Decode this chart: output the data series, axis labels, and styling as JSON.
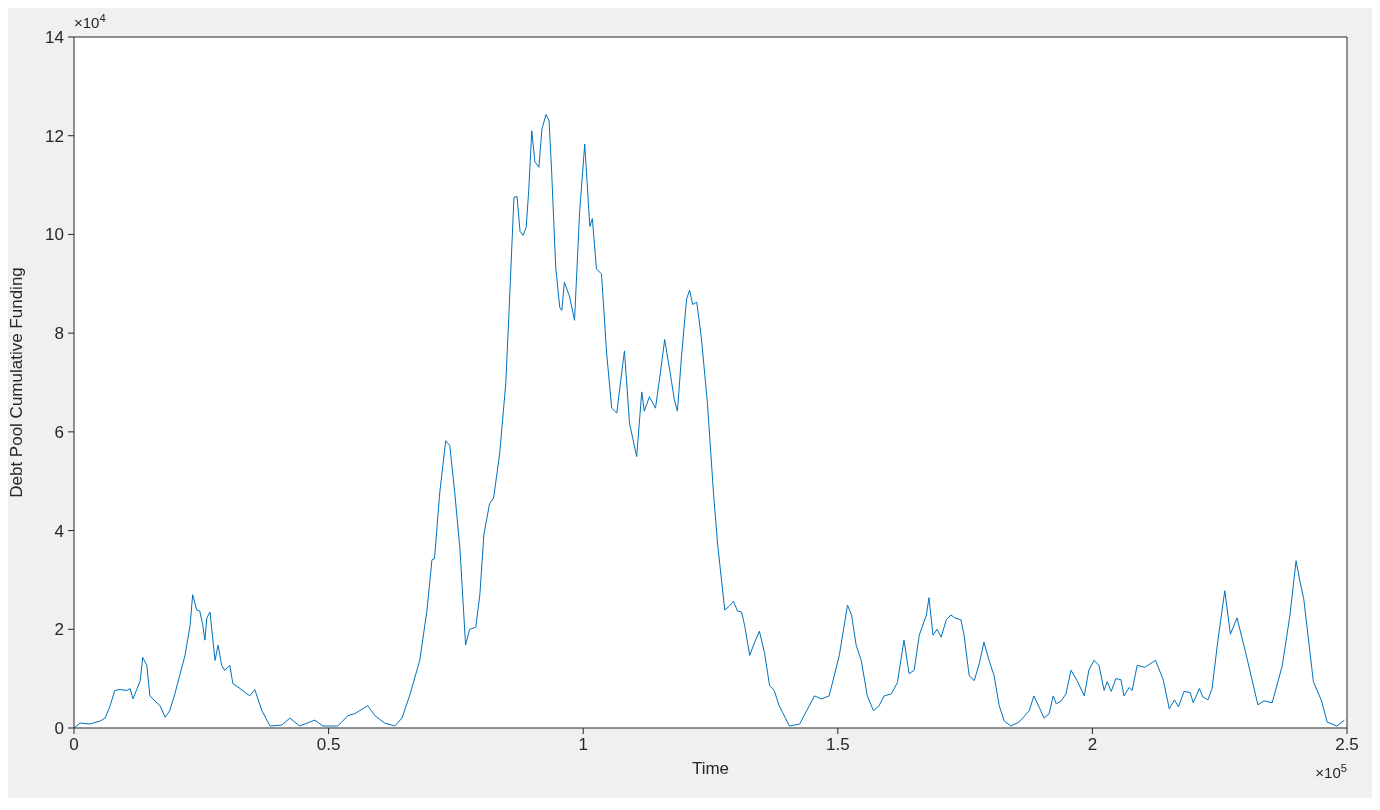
{
  "chart_data": {
    "type": "line",
    "xlabel": "Time",
    "ylabel": "Debt Pool Cumulative Funding",
    "annotations": [
      "×10$^{4}$",
      "×10$^{5}$"
    ],
    "xlim": [
      0,
      2.5
    ],
    "xticks": [
      0,
      0.5,
      1,
      1.5,
      2,
      2.5
    ],
    "ylim": [
      0,
      14
    ],
    "yticks": [
      0,
      2,
      4,
      6,
      8,
      10,
      12,
      14
    ],
    "marker": "none",
    "line_style": "solid",
    "x": [
      0,
      0.012,
      0.031,
      0.051,
      0.061,
      0.071,
      0.08,
      0.09,
      0.104,
      0.11,
      0.116,
      0.124,
      0.13,
      0.135,
      0.143,
      0.149,
      0.159,
      0.169,
      0.179,
      0.188,
      0.198,
      0.218,
      0.228,
      0.233,
      0.241,
      0.247,
      0.253,
      0.257,
      0.261,
      0.267,
      0.277,
      0.283,
      0.29,
      0.296,
      0.306,
      0.312,
      0.326,
      0.345,
      0.355,
      0.369,
      0.385,
      0.408,
      0.424,
      0.443,
      0.473,
      0.489,
      0.518,
      0.538,
      0.551,
      0.577,
      0.591,
      0.61,
      0.63,
      0.644,
      0.659,
      0.679,
      0.693,
      0.703,
      0.708,
      0.718,
      0.73,
      0.738,
      0.748,
      0.758,
      0.769,
      0.777,
      0.789,
      0.797,
      0.805,
      0.816,
      0.824,
      0.836,
      0.848,
      0.856,
      0.864,
      0.87,
      0.876,
      0.882,
      0.888,
      0.893,
      0.899,
      0.905,
      0.913,
      0.919,
      0.927,
      0.933,
      0.938,
      0.946,
      0.954,
      0.958,
      0.963,
      0.973,
      0.983,
      0.993,
      1.003,
      1.013,
      1.018,
      1.026,
      1.036,
      1.046,
      1.056,
      1.066,
      1.075,
      1.081,
      1.091,
      1.105,
      1.115,
      1.12,
      1.13,
      1.142,
      1.152,
      1.16,
      1.17,
      1.179,
      1.185,
      1.193,
      1.203,
      1.209,
      1.215,
      1.223,
      1.232,
      1.244,
      1.256,
      1.264,
      1.278,
      1.287,
      1.295,
      1.303,
      1.311,
      1.317,
      1.327,
      1.336,
      1.346,
      1.356,
      1.366,
      1.375,
      1.385,
      1.405,
      1.425,
      1.444,
      1.454,
      1.468,
      1.483,
      1.503,
      1.519,
      1.527,
      1.536,
      1.546,
      1.558,
      1.57,
      1.581,
      1.591,
      1.605,
      1.617,
      1.63,
      1.64,
      1.65,
      1.66,
      1.674,
      1.679,
      1.687,
      1.695,
      1.703,
      1.713,
      1.722,
      1.73,
      1.742,
      1.748,
      1.758,
      1.768,
      1.778,
      1.787,
      1.797,
      1.807,
      1.817,
      1.827,
      1.84,
      1.856,
      1.876,
      1.885,
      1.896,
      1.905,
      1.915,
      1.923,
      1.929,
      1.939,
      1.948,
      1.958,
      1.97,
      1.984,
      1.993,
      2.003,
      2.013,
      2.023,
      2.029,
      2.037,
      2.046,
      2.056,
      2.062,
      2.072,
      2.078,
      2.088,
      2.103,
      2.124,
      2.139,
      2.151,
      2.161,
      2.169,
      2.18,
      2.192,
      2.198,
      2.21,
      2.217,
      2.227,
      2.235,
      2.247,
      2.26,
      2.271,
      2.284,
      2.3,
      2.325,
      2.337,
      2.353,
      2.373,
      2.388,
      2.4,
      2.407,
      2.415,
      2.434,
      2.45,
      2.461,
      2.48,
      2.495
    ],
    "series": [
      {
        "color": "#0072bd",
        "values": [
          0,
          0.1,
          0.08,
          0.14,
          0.2,
          0.45,
          0.76,
          0.78,
          0.76,
          0.8,
          0.59,
          0.8,
          0.96,
          1.43,
          1.27,
          0.65,
          0.55,
          0.45,
          0.22,
          0.35,
          0.69,
          1.47,
          2.08,
          2.7,
          2.39,
          2.37,
          2.08,
          1.78,
          2.23,
          2.35,
          1.37,
          1.68,
          1.27,
          1.17,
          1.27,
          0.9,
          0.8,
          0.65,
          0.78,
          0.35,
          0.04,
          0.06,
          0.2,
          0.04,
          0.16,
          0.04,
          0.04,
          0.25,
          0.29,
          0.45,
          0.25,
          0.1,
          0.04,
          0.2,
          0.65,
          1.37,
          2.37,
          3.41,
          3.43,
          4.74,
          5.82,
          5.72,
          4.74,
          3.62,
          1.68,
          2,
          2.04,
          2.7,
          3.92,
          4.54,
          4.66,
          5.56,
          6.99,
          8.83,
          10.75,
          10.77,
          10.06,
          9.98,
          10.14,
          10.88,
          12.1,
          11.48,
          11.36,
          12.14,
          12.43,
          12.3,
          11.28,
          9.34,
          8.52,
          8.46,
          9.03,
          8.75,
          8.26,
          10.46,
          11.83,
          10.16,
          10.32,
          9.3,
          9.2,
          7.6,
          6.48,
          6.38,
          7.15,
          7.64,
          6.17,
          5.5,
          6.81,
          6.42,
          6.71,
          6.48,
          7.23,
          7.87,
          7.25,
          6.65,
          6.42,
          7.52,
          8.69,
          8.87,
          8.58,
          8.63,
          7.91,
          6.58,
          4.74,
          3.72,
          2.39,
          2.47,
          2.57,
          2.37,
          2.35,
          2.08,
          1.47,
          1.72,
          1.96,
          1.53,
          0.86,
          0.76,
          0.45,
          0.04,
          0.08,
          0.45,
          0.65,
          0.59,
          0.65,
          1.47,
          2.49,
          2.29,
          1.68,
          1.37,
          0.65,
          0.35,
          0.45,
          0.65,
          0.69,
          0.92,
          1.78,
          1.1,
          1.17,
          1.88,
          2.29,
          2.64,
          1.88,
          2,
          1.84,
          2.19,
          2.29,
          2.23,
          2.19,
          1.88,
          1.06,
          0.96,
          1.31,
          1.74,
          1.37,
          1.06,
          0.45,
          0.14,
          0.04,
          0.12,
          0.35,
          0.65,
          0.41,
          0.2,
          0.29,
          0.65,
          0.49,
          0.55,
          0.69,
          1.17,
          0.96,
          0.65,
          1.17,
          1.37,
          1.27,
          0.76,
          0.94,
          0.74,
          1,
          0.98,
          0.65,
          0.82,
          0.76,
          1.27,
          1.23,
          1.37,
          0.98,
          0.39,
          0.57,
          0.43,
          0.74,
          0.72,
          0.51,
          0.8,
          0.63,
          0.57,
          0.8,
          1.82,
          2.78,
          1.9,
          2.23,
          1.57,
          0.47,
          0.55,
          0.51,
          1.27,
          2.29,
          3.39,
          3,
          2.62,
          0.94,
          0.55,
          0.12,
          0.04,
          0.16
        ]
      }
    ]
  }
}
